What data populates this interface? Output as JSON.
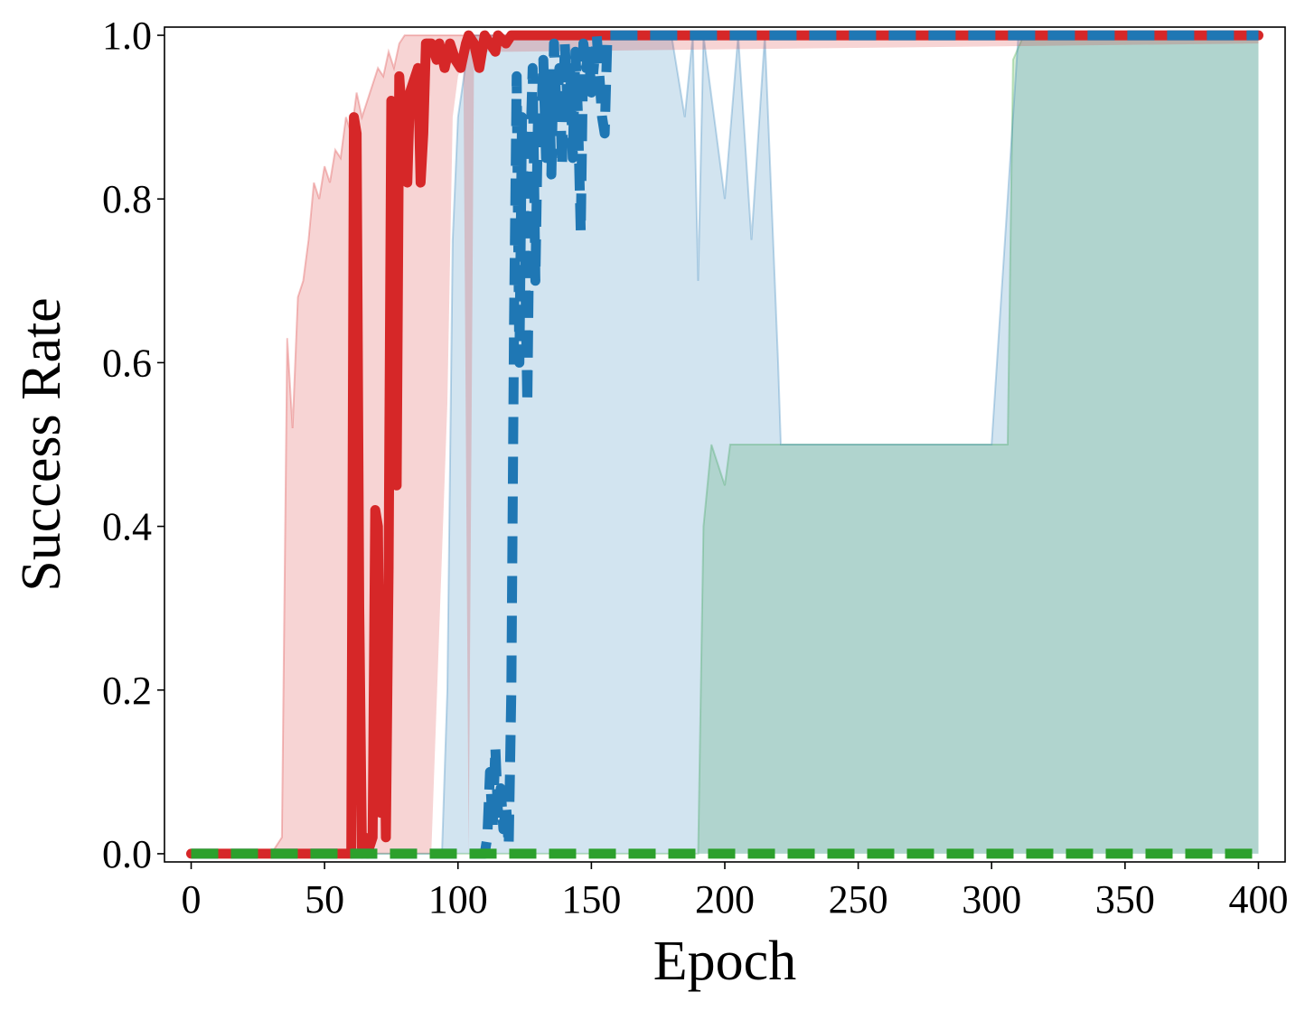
{
  "chart_data": {
    "type": "line",
    "title": "",
    "xlabel": "Epoch",
    "ylabel": "Success Rate",
    "xlim": [
      -10,
      410
    ],
    "ylim": [
      -0.01,
      1.01
    ],
    "xticks": [
      0,
      50,
      100,
      150,
      200,
      250,
      300,
      350,
      400
    ],
    "yticks": [
      0.0,
      0.2,
      0.4,
      0.6,
      0.8,
      1.0
    ],
    "xtick_labels": [
      "0",
      "50",
      "100",
      "150",
      "200",
      "250",
      "300",
      "350",
      "400"
    ],
    "ytick_labels": [
      "0.0",
      "0.2",
      "0.4",
      "0.6",
      "0.8",
      "1.0"
    ],
    "grid": false,
    "legend": "none",
    "series": [
      {
        "color": "#d62728",
        "line_style": "solid",
        "mean": [
          [
            0,
            0
          ],
          [
            58,
            0
          ],
          [
            60,
            0
          ],
          [
            61,
            0.9
          ],
          [
            62,
            0.88
          ],
          [
            63,
            0.3
          ],
          [
            64,
            0
          ],
          [
            65,
            0.02
          ],
          [
            66,
            0
          ],
          [
            68,
            0.02
          ],
          [
            69,
            0.42
          ],
          [
            70,
            0.4
          ],
          [
            71,
            0.05
          ],
          [
            72,
            0.3
          ],
          [
            73,
            0.02
          ],
          [
            74,
            0.35
          ],
          [
            75,
            0.92
          ],
          [
            76,
            0.9
          ],
          [
            77,
            0.45
          ],
          [
            78,
            0.95
          ],
          [
            79,
            0.9
          ],
          [
            80,
            0.92
          ],
          [
            81,
            0.82
          ],
          [
            82,
            0.93
          ],
          [
            84,
            0.95
          ],
          [
            85,
            0.96
          ],
          [
            86,
            0.82
          ],
          [
            87,
            0.88
          ],
          [
            88,
            0.99
          ],
          [
            90,
            0.99
          ],
          [
            92,
            0.97
          ],
          [
            93,
            0.99
          ],
          [
            95,
            0.96
          ],
          [
            97,
            0.99
          ],
          [
            99,
            0.97
          ],
          [
            101,
            0.96
          ],
          [
            103,
            0.99
          ],
          [
            104,
            1
          ],
          [
            106,
            0.99
          ],
          [
            108,
            0.96
          ],
          [
            110,
            1
          ],
          [
            112,
            0.99
          ],
          [
            114,
            0.98
          ],
          [
            115,
            1
          ],
          [
            118,
            0.99
          ],
          [
            120,
            1
          ],
          [
            400,
            1
          ]
        ],
        "band_lower": [
          [
            0,
            0
          ],
          [
            90,
            0
          ],
          [
            96,
            0.55
          ],
          [
            98,
            0.9
          ],
          [
            100,
            0.95
          ],
          [
            102,
            0.97
          ],
          [
            104,
            0
          ],
          [
            106,
            0.97
          ],
          [
            110,
            0.98
          ],
          [
            120,
            0.98
          ],
          [
            400,
            0.99
          ]
        ],
        "band_upper": [
          [
            0,
            0
          ],
          [
            30,
            0
          ],
          [
            34,
            0.02
          ],
          [
            36,
            0.63
          ],
          [
            38,
            0.52
          ],
          [
            40,
            0.68
          ],
          [
            42,
            0.7
          ],
          [
            44,
            0.75
          ],
          [
            46,
            0.82
          ],
          [
            48,
            0.8
          ],
          [
            50,
            0.84
          ],
          [
            52,
            0.82
          ],
          [
            54,
            0.86
          ],
          [
            56,
            0.85
          ],
          [
            58,
            0.9
          ],
          [
            60,
            0.88
          ],
          [
            62,
            0.93
          ],
          [
            64,
            0.9
          ],
          [
            66,
            0.92
          ],
          [
            68,
            0.94
          ],
          [
            70,
            0.96
          ],
          [
            72,
            0.95
          ],
          [
            74,
            0.98
          ],
          [
            76,
            0.96
          ],
          [
            78,
            0.99
          ],
          [
            80,
            1
          ],
          [
            400,
            1
          ]
        ]
      },
      {
        "color": "#1f77b4",
        "line_style": "dashed",
        "mean": [
          [
            0,
            0
          ],
          [
            110,
            0
          ],
          [
            111,
            0.02
          ],
          [
            112,
            0.1
          ],
          [
            113,
            0.03
          ],
          [
            114,
            0.13
          ],
          [
            115,
            0.05
          ],
          [
            116,
            0.08
          ],
          [
            117,
            0.03
          ],
          [
            118,
            0.06
          ],
          [
            119,
            0.01
          ],
          [
            120,
            0.2
          ],
          [
            121,
            0.65
          ],
          [
            122,
            0.95
          ],
          [
            123,
            0.6
          ],
          [
            124,
            0.9
          ],
          [
            125,
            0.75
          ],
          [
            126,
            0.55
          ],
          [
            127,
            0.85
          ],
          [
            128,
            0.96
          ],
          [
            129,
            0.7
          ],
          [
            130,
            0.9
          ],
          [
            131,
            0.88
          ],
          [
            132,
            0.97
          ],
          [
            133,
            0.85
          ],
          [
            134,
            0.95
          ],
          [
            135,
            0.83
          ],
          [
            136,
            0.99
          ],
          [
            137,
            0.9
          ],
          [
            138,
            0.96
          ],
          [
            139,
            0.84
          ],
          [
            140,
            0.99
          ],
          [
            141,
            0.92
          ],
          [
            142,
            0.96
          ],
          [
            143,
            0.85
          ],
          [
            144,
            0.98
          ],
          [
            145,
            0.9
          ],
          [
            146,
            0.76
          ],
          [
            147,
            0.99
          ],
          [
            148,
            0.96
          ],
          [
            149,
            0.98
          ],
          [
            150,
            0.93
          ],
          [
            152,
            1
          ],
          [
            154,
            0.9
          ],
          [
            155,
            0.88
          ],
          [
            156,
            1
          ],
          [
            400,
            1
          ]
        ],
        "band_lower": [
          [
            0,
            0
          ],
          [
            400,
            0
          ]
        ],
        "band_upper": [
          [
            0,
            0
          ],
          [
            94,
            0
          ],
          [
            96,
            0.2
          ],
          [
            98,
            0.75
          ],
          [
            100,
            0.9
          ],
          [
            104,
            0.99
          ],
          [
            106,
            1
          ],
          [
            180,
            1
          ],
          [
            185,
            0.9
          ],
          [
            188,
            1
          ],
          [
            190,
            0.7
          ],
          [
            192,
            1
          ],
          [
            200,
            0.8
          ],
          [
            205,
            1
          ],
          [
            210,
            0.75
          ],
          [
            215,
            1
          ],
          [
            220,
            0.6
          ],
          [
            221,
            0.5
          ],
          [
            300,
            0.5
          ],
          [
            310,
            1
          ],
          [
            400,
            1
          ]
        ]
      },
      {
        "color": "#2ca02c",
        "line_style": "dashed",
        "mean": [
          [
            0,
            0
          ],
          [
            400,
            0
          ]
        ],
        "band_lower": [
          [
            0,
            0
          ],
          [
            400,
            0
          ]
        ],
        "band_upper": [
          [
            0,
            0
          ],
          [
            190,
            0
          ],
          [
            192,
            0.4
          ],
          [
            195,
            0.5
          ],
          [
            200,
            0.45
          ],
          [
            202,
            0.5
          ],
          [
            306,
            0.5
          ],
          [
            308,
            0.97
          ],
          [
            312,
            1
          ],
          [
            400,
            1
          ]
        ]
      }
    ]
  }
}
